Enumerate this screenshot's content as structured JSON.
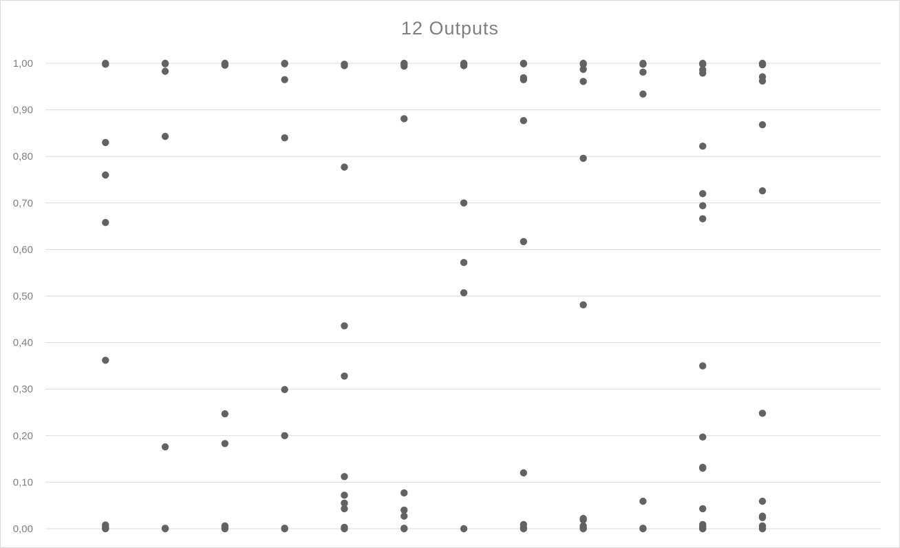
{
  "chart_data": {
    "type": "scatter",
    "title": "12 Outputs",
    "xlabel": "",
    "ylabel": "",
    "xlim": [
      0,
      13
    ],
    "ylim": [
      0,
      1
    ],
    "grid": true,
    "legend": "none",
    "y_ticks": [
      "0,00",
      "0,10",
      "0,20",
      "0,30",
      "0,40",
      "0,50",
      "0,60",
      "0,70",
      "0,80",
      "0,90",
      "1,00"
    ],
    "marker_color": "#626262",
    "series": [
      {
        "x": 1,
        "values": [
          1.0,
          0.998,
          0.83,
          0.76,
          0.658,
          0.362,
          0.008,
          0.004,
          0.001,
          0.0
        ]
      },
      {
        "x": 2,
        "values": [
          1.0,
          0.999,
          0.983,
          0.843,
          0.176,
          0.001,
          0.0
        ]
      },
      {
        "x": 3,
        "values": [
          1.0,
          0.998,
          0.996,
          0.247,
          0.183,
          0.006,
          0.002,
          0.0
        ]
      },
      {
        "x": 4,
        "values": [
          1.0,
          0.999,
          0.965,
          0.84,
          0.299,
          0.2,
          0.001,
          0.0
        ]
      },
      {
        "x": 5,
        "values": [
          0.998,
          0.995,
          0.777,
          0.436,
          0.328,
          0.112,
          0.072,
          0.055,
          0.043,
          0.003,
          0.001,
          0.0
        ]
      },
      {
        "x": 6,
        "values": [
          1.0,
          0.998,
          0.994,
          0.881,
          0.077,
          0.04,
          0.027,
          0.001,
          0.0
        ]
      },
      {
        "x": 7,
        "values": [
          1.0,
          0.998,
          0.995,
          0.7,
          0.572,
          0.507,
          0.0
        ]
      },
      {
        "x": 8,
        "values": [
          1.0,
          0.999,
          0.969,
          0.965,
          0.877,
          0.617,
          0.12,
          0.009,
          0.002,
          0.0
        ]
      },
      {
        "x": 9,
        "values": [
          1.0,
          0.998,
          0.987,
          0.961,
          0.796,
          0.481,
          0.022,
          0.019,
          0.006,
          0.002,
          0.0
        ]
      },
      {
        "x": 10,
        "values": [
          1.0,
          0.998,
          0.981,
          0.934,
          0.059,
          0.001,
          0.0
        ]
      },
      {
        "x": 11,
        "values": [
          1.0,
          0.998,
          0.986,
          0.979,
          0.822,
          0.72,
          0.694,
          0.666,
          0.35,
          0.197,
          0.132,
          0.13,
          0.043,
          0.009,
          0.005,
          0.001,
          0.0
        ]
      },
      {
        "x": 12,
        "values": [
          1.0,
          0.998,
          0.997,
          0.971,
          0.962,
          0.868,
          0.726,
          0.248,
          0.059,
          0.027,
          0.024,
          0.006,
          0.002,
          0.0
        ]
      }
    ]
  }
}
